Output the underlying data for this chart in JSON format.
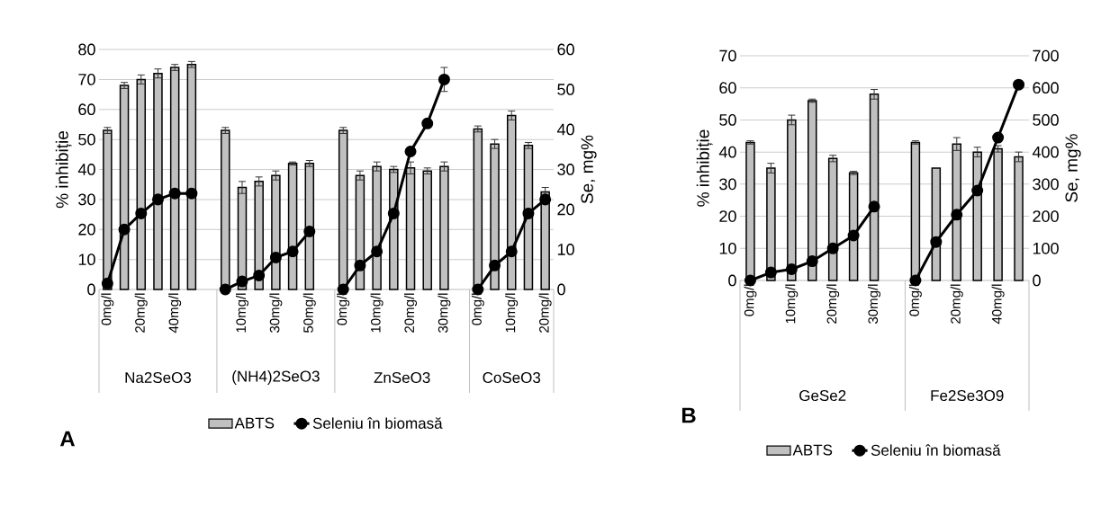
{
  "chart_data": [
    {
      "type": "bar",
      "ylabel": "% inhibiție",
      "y2label": "Se, mg%",
      "ylim": [
        0,
        80
      ],
      "yticks": [
        0,
        10,
        20,
        30,
        40,
        50,
        60,
        70,
        80
      ],
      "y2lim": [
        0,
        60
      ],
      "y2ticks": [
        0,
        10,
        20,
        30,
        40,
        50,
        60
      ],
      "grid": "y",
      "legend": "bottom",
      "marker": "circle",
      "categories": [
        "0mg/l",
        null,
        "20mg/l",
        null,
        "40mg/l",
        null,
        null,
        null,
        "10mg/l",
        null,
        "30mg/l",
        null,
        "50mg/l",
        null,
        "0mg/l",
        null,
        "10mg/l",
        null,
        "20mg/l",
        null,
        "30mg/l",
        null,
        "0mg/l",
        null,
        "10mg/l",
        null,
        "20mg/l"
      ],
      "series": [
        {
          "name": "ABTS",
          "color": "#c0c0c0",
          "values": [
            53,
            68,
            70,
            72,
            74,
            75,
            null,
            53,
            34,
            36,
            38,
            42,
            42,
            null,
            53,
            38,
            41,
            40,
            40.5,
            39.5,
            41,
            null,
            53.5,
            48.5,
            58,
            48,
            32.5
          ],
          "errors": [
            1,
            1,
            1.5,
            1.5,
            1,
            1,
            null,
            1,
            2,
            1.5,
            1.5,
            0.5,
            1,
            null,
            1,
            1.5,
            1.5,
            1,
            2,
            1,
            1.5,
            null,
            1,
            1.5,
            1.5,
            1,
            1.5
          ]
        },
        {
          "name": "Seleniu în biomasă",
          "type": "line",
          "axis": "y2",
          "color": "#000000",
          "values": [
            1.5,
            15,
            19,
            22.5,
            24,
            24,
            null,
            0,
            2,
            3.5,
            8,
            9.5,
            14.5,
            null,
            0,
            6,
            9.5,
            19,
            34.5,
            41.5,
            52.5,
            null,
            0,
            6,
            9.5,
            19,
            22.5
          ],
          "errors": [
            null,
            null,
            null,
            null,
            null,
            null,
            null,
            null,
            null,
            null,
            null,
            null,
            null,
            null,
            null,
            null,
            null,
            null,
            null,
            null,
            3,
            null,
            null,
            null,
            null,
            null,
            null
          ]
        }
      ],
      "annotations": [
        "Na2SeO3",
        "(NH4)2SeO3",
        "ZnSeO3",
        "CoSeO3",
        "A"
      ]
    },
    {
      "type": "bar",
      "ylabel": "% inhibiție",
      "y2label": "Se, mg%",
      "ylim": [
        0,
        70
      ],
      "yticks": [
        0,
        10,
        20,
        30,
        40,
        50,
        60,
        70
      ],
      "y2lim": [
        0,
        700
      ],
      "y2ticks": [
        0,
        100,
        200,
        300,
        400,
        500,
        600,
        700
      ],
      "grid": "y",
      "legend": "bottom",
      "marker": "circle",
      "categories": [
        "0mg/l",
        null,
        "10mg/l",
        null,
        "20mg/l",
        null,
        "30mg/l",
        null,
        "0mg/l",
        null,
        "20mg/l",
        null,
        "40mg/l",
        null
      ],
      "series": [
        {
          "name": "ABTS",
          "color": "#c0c0c0",
          "values": [
            43,
            35,
            50,
            56,
            38,
            33.5,
            58,
            null,
            43,
            35,
            42.5,
            40,
            41,
            38.5
          ],
          "errors": [
            0.5,
            1.5,
            1.5,
            0.5,
            1,
            0.5,
            1.5,
            null,
            0.5,
            null,
            2,
            1.5,
            1,
            1.5
          ]
        },
        {
          "name": "Seleniu în biomasă",
          "type": "line",
          "axis": "y2",
          "color": "#000000",
          "values": [
            0,
            25,
            35,
            60,
            100,
            140,
            230,
            null,
            0,
            120,
            205,
            280,
            445,
            610
          ]
        }
      ],
      "annotations": [
        "GeSe2",
        "Fe2Se3O9",
        "B"
      ]
    }
  ]
}
